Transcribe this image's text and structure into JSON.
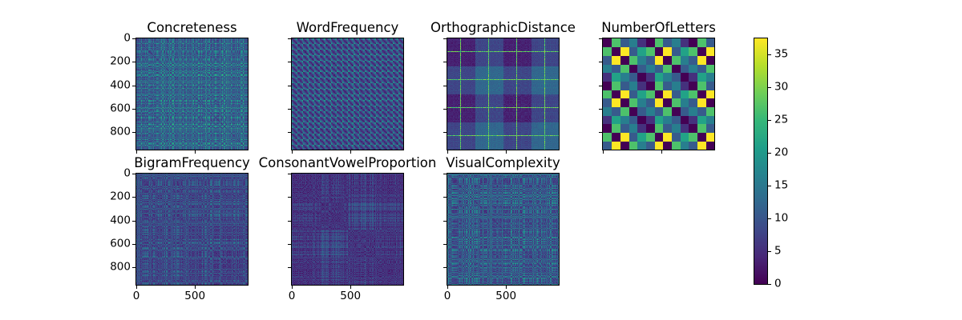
{
  "figure": {
    "background": "#ffffff",
    "type_label": "matplotlib-figure"
  },
  "chart_data": {
    "type": "heatmap",
    "layout": "2-row grid: 4 panels top, 3 panels bottom, shared colorbar right",
    "colormap": "viridis",
    "viridis_stops": [
      "#440154",
      "#482878",
      "#3e4989",
      "#31688e",
      "#26828e",
      "#1f9e89",
      "#35b779",
      "#6ece58",
      "#b5de2b",
      "#fde725"
    ],
    "matrix_size": 950,
    "y_ticks": [
      0,
      200,
      400,
      600,
      800
    ],
    "x_ticks": [
      0,
      500
    ],
    "colorbar": {
      "vmin": 0,
      "vmax": 37.4,
      "ticks": [
        0,
        5,
        10,
        15,
        20,
        25,
        30,
        35
      ]
    },
    "panels": [
      {
        "title": "Concreteness",
        "row": 0,
        "col": 0,
        "y_labels": true,
        "x_labels": false,
        "pattern": "absdiff",
        "seed": 11,
        "base": 0.18,
        "scale": 0.5,
        "noise": 0.04
      },
      {
        "title": "WordFrequency",
        "row": 0,
        "col": 1,
        "y_labels": false,
        "x_labels": false,
        "pattern": "periodic",
        "seed": 23,
        "base": 0.08,
        "scale": 0.52,
        "noise": 0.03,
        "period": 7
      },
      {
        "title": "OrthographicDistance",
        "row": 0,
        "col": 2,
        "y_labels": false,
        "x_labels": false,
        "pattern": "blocks",
        "seed": 37,
        "base": 0.07,
        "step": 0.12,
        "noise": 0.03,
        "block": 35,
        "line_offset": 16,
        "line_value": 0.74
      },
      {
        "title": "NumberOfLetters",
        "row": 0,
        "col": 3,
        "y_labels": false,
        "x_labels": false,
        "pattern": "checker",
        "seed": 5,
        "cells": 13,
        "sequence": [
          4,
          9,
          2,
          7,
          5
        ],
        "max_diff": 7
      },
      {
        "title": "BigramFrequency",
        "row": 1,
        "col": 0,
        "y_labels": true,
        "x_labels": true,
        "pattern": "absdiff",
        "seed": 53,
        "base": 0.12,
        "scale": 0.32,
        "noise": 0.05
      },
      {
        "title": "ConsonantVowelProportion",
        "row": 1,
        "col": 1,
        "y_labels": false,
        "x_labels": true,
        "pattern": "blocknoise",
        "seed": 67,
        "base": 0.1,
        "scale": 0.3,
        "noise": 0.065,
        "block": 35
      },
      {
        "title": "VisualComplexity",
        "row": 1,
        "col": 2,
        "y_labels": false,
        "x_labels": true,
        "pattern": "absdiff",
        "seed": 79,
        "base": 0.14,
        "scale": 0.42,
        "noise": 0.05
      }
    ]
  }
}
